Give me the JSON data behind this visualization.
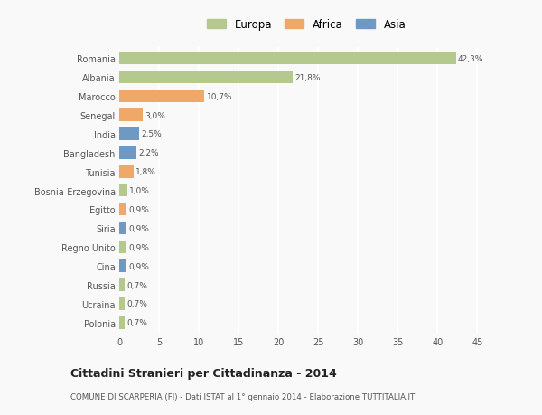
{
  "categories": [
    "Polonia",
    "Ucraina",
    "Russia",
    "Cina",
    "Regno Unito",
    "Siria",
    "Egitto",
    "Bosnia-Erzegovina",
    "Tunisia",
    "Bangladesh",
    "India",
    "Senegal",
    "Marocco",
    "Albania",
    "Romania"
  ],
  "values": [
    0.7,
    0.7,
    0.7,
    0.9,
    0.9,
    0.9,
    0.9,
    1.0,
    1.8,
    2.2,
    2.5,
    3.0,
    10.7,
    21.8,
    42.3
  ],
  "labels": [
    "0,7%",
    "0,7%",
    "0,7%",
    "0,9%",
    "0,9%",
    "0,9%",
    "0,9%",
    "1,0%",
    "1,8%",
    "2,2%",
    "2,5%",
    "3,0%",
    "10,7%",
    "21,8%",
    "42,3%"
  ],
  "colors": [
    "#b5c98e",
    "#b5c98e",
    "#b5c98e",
    "#6e99c4",
    "#b5c98e",
    "#6e99c4",
    "#f0a868",
    "#b5c98e",
    "#f0a868",
    "#6e99c4",
    "#6e99c4",
    "#f0a868",
    "#f0a868",
    "#b5c98e",
    "#b5c98e"
  ],
  "legend_labels": [
    "Europa",
    "Africa",
    "Asia"
  ],
  "legend_colors": [
    "#b5c98e",
    "#f0a868",
    "#6e99c4"
  ],
  "title": "Cittadini Stranieri per Cittadinanza - 2014",
  "subtitle": "COMUNE DI SCARPERIA (FI) - Dati ISTAT al 1° gennaio 2014 - Elaborazione TUTTITALIA.IT",
  "xlim": [
    0,
    47
  ],
  "xticks": [
    0,
    5,
    10,
    15,
    20,
    25,
    30,
    35,
    40,
    45
  ],
  "background_color": "#f9f9f9",
  "grid_color": "#ffffff",
  "bar_height": 0.65
}
